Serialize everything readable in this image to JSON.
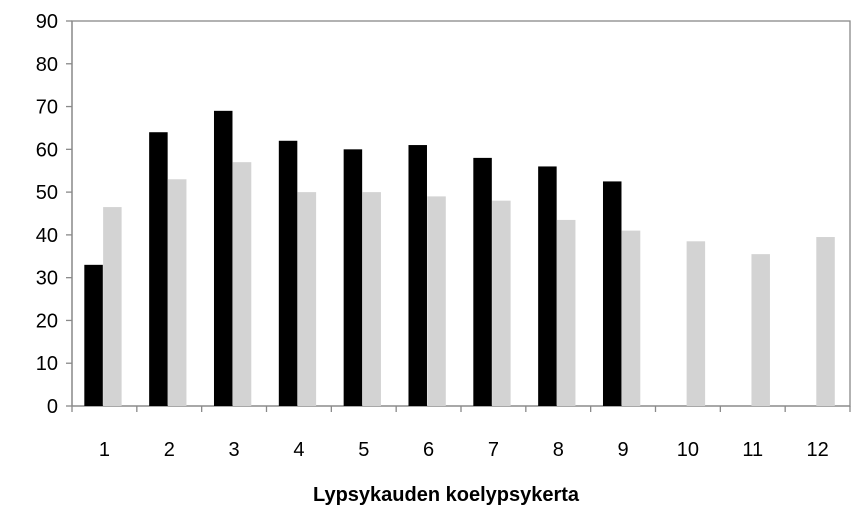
{
  "chart_data": {
    "type": "bar",
    "title": "",
    "xlabel": "Lypsykauden koelypsykerta",
    "ylabel": "",
    "categories": [
      "1",
      "2",
      "3",
      "4",
      "5",
      "6",
      "7",
      "8",
      "9",
      "10",
      "11",
      "12"
    ],
    "series": [
      {
        "color": "#000000",
        "values": [
          33,
          64,
          69,
          62,
          60,
          61,
          58,
          56,
          52.5,
          null,
          null,
          null
        ]
      },
      {
        "color": "#d3d3d3",
        "values": [
          46.5,
          53,
          57,
          50,
          50,
          49,
          48,
          43.5,
          41,
          38.5,
          35.5,
          39.5
        ]
      }
    ],
    "ylim": [
      0,
      90
    ],
    "yticks": [
      0,
      10,
      20,
      30,
      40,
      50,
      60,
      70,
      80,
      90
    ],
    "grid": false,
    "legend": "none"
  }
}
